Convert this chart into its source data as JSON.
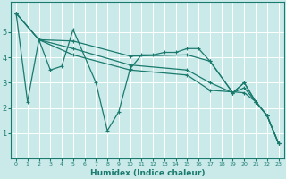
{
  "xlabel": "Humidex (Indice chaleur)",
  "xlim": [
    -0.5,
    23.5
  ],
  "ylim": [
    0,
    6.2
  ],
  "yticks": [
    1,
    2,
    3,
    4,
    5
  ],
  "ytick_labels": [
    "1",
    "2",
    "3",
    "4",
    "5"
  ],
  "xticks": [
    0,
    1,
    2,
    3,
    4,
    5,
    6,
    7,
    8,
    9,
    10,
    11,
    12,
    13,
    14,
    15,
    16,
    17,
    18,
    19,
    20,
    21,
    22,
    23
  ],
  "background_color": "#caeaea",
  "grid_color": "#ffffff",
  "line_color": "#1a7a6e",
  "series": [
    {
      "x": [
        0,
        1,
        2,
        3,
        4,
        5,
        7,
        8,
        9,
        10,
        11,
        12,
        13,
        14,
        15,
        16,
        17,
        19,
        20,
        21,
        22,
        23
      ],
      "y": [
        5.75,
        2.25,
        4.7,
        3.5,
        3.65,
        5.1,
        3.0,
        1.1,
        1.85,
        3.55,
        4.1,
        4.1,
        4.2,
        4.2,
        4.35,
        4.35,
        3.85,
        2.6,
        3.0,
        2.25,
        1.7,
        0.6
      ]
    },
    {
      "x": [
        0,
        2,
        5,
        10,
        15,
        17,
        19,
        20,
        21,
        22,
        23
      ],
      "y": [
        5.75,
        4.7,
        4.65,
        4.05,
        4.1,
        3.85,
        2.6,
        3.0,
        2.25,
        1.7,
        0.6
      ]
    },
    {
      "x": [
        0,
        2,
        5,
        10,
        15,
        17,
        19,
        20,
        21,
        22,
        23
      ],
      "y": [
        5.75,
        4.7,
        4.35,
        3.7,
        3.5,
        3.0,
        2.6,
        2.8,
        2.25,
        1.7,
        0.6
      ]
    },
    {
      "x": [
        0,
        2,
        5,
        10,
        15,
        17,
        20,
        21,
        22,
        23
      ],
      "y": [
        5.75,
        4.7,
        4.1,
        3.5,
        3.3,
        2.7,
        2.6,
        2.25,
        1.7,
        0.6
      ]
    }
  ]
}
